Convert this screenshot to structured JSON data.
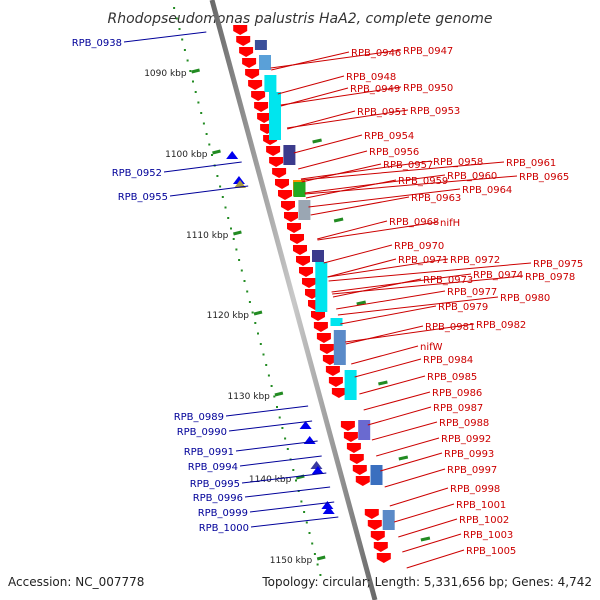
{
  "title": "Rhodopseudomonas palustris HaA2, complete genome",
  "footer": {
    "accession": "Accession: NC_007778",
    "summary": "Topology: circular; Length: 5,331,656 bp; Genes: 4,742"
  },
  "colors": {
    "forward_gene": "#ff0000",
    "reverse_gene": "#0000cc",
    "forward_label": "#cc0000",
    "reverse_label": "#000099",
    "tick": "#228b22",
    "backbone": "#888888",
    "cyan_feature": "#00e5ee",
    "navy_feature": "#3b3b8c"
  },
  "ruler": [
    "1090 kbp",
    "1100 kbp",
    "1110 kbp",
    "1120 kbp",
    "1130 kbp",
    "1140 kbp",
    "1150 kbp"
  ],
  "reverse_genes": [
    "RPB_0938",
    "RPB_0952",
    "RPB_0955",
    "RPB_0989",
    "RPB_0990",
    "RPB_0991",
    "RPB_0994",
    "RPB_0995",
    "RPB_0996",
    "RPB_0999",
    "RPB_1000"
  ],
  "forward_genes": [
    "RPB_0946",
    "RPB_0947",
    "RPB_0948",
    "RPB_0949",
    "RPB_0950",
    "RPB_0951",
    "RPB_0953",
    "RPB_0954",
    "RPB_0956",
    "RPB_0957",
    "RPB_0958",
    "RPB_0961",
    "RPB_0960",
    "RPB_0965",
    "RPB_0959",
    "RPB_0964",
    "RPB_0963",
    "RPB_0968",
    "nifH",
    "RPB_0970",
    "RPB_0971",
    "RPB_0972",
    "RPB_0975",
    "RPB_0973",
    "RPB_0974",
    "RPB_0978",
    "RPB_0977",
    "RPB_0979",
    "RPB_0980",
    "RPB_0981",
    "RPB_0982",
    "nifW",
    "RPB_0984",
    "RPB_0985",
    "RPB_0986",
    "RPB_0987",
    "RPB_0988",
    "RPB_0992",
    "RPB_0993",
    "RPB_0997",
    "RPB_0998",
    "RPB_1001",
    "RPB_1002",
    "RPB_1003",
    "RPB_1005"
  ]
}
